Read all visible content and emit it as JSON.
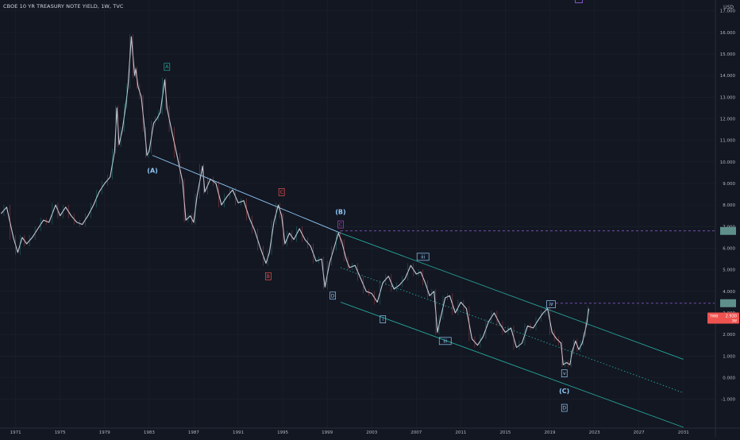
{
  "chart_data": {
    "type": "line",
    "title": "CBOE 10 YR TREASURY NOTE YIELD, 1W, TVC",
    "currency": "USD",
    "x_tick_labels": [
      "1971",
      "1975",
      "1979",
      "1983",
      "1987",
      "1991",
      "1995",
      "1999",
      "2003",
      "2007",
      "2011",
      "2015",
      "2019",
      "2023",
      "2027",
      "2031"
    ],
    "x_ticks": [
      1971,
      1975,
      1979,
      1983,
      1987,
      1991,
      1995,
      1999,
      2003,
      2007,
      2011,
      2015,
      2019,
      2023,
      2027,
      2031
    ],
    "xlim": [
      1969.6,
      2033.8
    ],
    "y_tick_labels": [
      "17.000",
      "16.000",
      "15.000",
      "14.000",
      "13.000",
      "12.000",
      "11.000",
      "10.000",
      "9.000",
      "8.000",
      "7.000",
      "6.000",
      "5.000",
      "4.000",
      "3.000",
      "2.000",
      "1.000",
      "0.000",
      "-1.000"
    ],
    "y_ticks": [
      17,
      16,
      15,
      14,
      13,
      12,
      11,
      10,
      9,
      8,
      7,
      6,
      5,
      4,
      3,
      2,
      1,
      0,
      -1
    ],
    "ylim": [
      -2.3,
      17.5
    ],
    "series": [
      {
        "x": [
          1969.7,
          1970.2,
          1970.8,
          1971.2,
          1971.6,
          1972.0,
          1972.5,
          1973.0,
          1973.5,
          1974.0,
          1974.6,
          1975.0,
          1975.5,
          1976.0,
          1976.5,
          1977.0,
          1977.5,
          1978.0,
          1978.5,
          1979.0,
          1979.5,
          1979.9,
          1980.1,
          1980.3,
          1980.6,
          1980.9,
          1981.1,
          1981.4,
          1981.7,
          1981.8,
          1982.0,
          1982.3,
          1982.6,
          1982.8,
          1983.0,
          1983.4,
          1983.7,
          1984.0,
          1984.4,
          1984.6,
          1985.0,
          1985.5,
          1986.0,
          1986.3,
          1986.7,
          1987.0,
          1987.3,
          1987.8,
          1988.0,
          1988.5,
          1989.0,
          1989.5,
          1990.0,
          1990.5,
          1991.0,
          1991.5,
          1992.0,
          1992.5,
          1993.0,
          1993.5,
          1993.8,
          1994.2,
          1994.6,
          1994.9,
          1995.2,
          1995.6,
          1996.0,
          1996.5,
          1997.0,
          1997.5,
          1998.0,
          1998.5,
          1998.8,
          1999.2,
          1999.6,
          2000.0,
          2000.3,
          2000.7,
          2001.0,
          2001.5,
          2002.0,
          2002.5,
          2003.0,
          2003.5,
          2004.0,
          2004.5,
          2005.0,
          2005.5,
          2006.0,
          2006.5,
          2007.0,
          2007.4,
          2007.8,
          2008.2,
          2008.6,
          2008.9,
          2009.2,
          2009.6,
          2010.0,
          2010.5,
          2011.0,
          2011.5,
          2012.0,
          2012.5,
          2013.0,
          2013.5,
          2014.0,
          2014.5,
          2015.0,
          2015.5,
          2016.0,
          2016.5,
          2017.0,
          2017.5,
          2018.0,
          2018.4,
          2018.8,
          2019.2,
          2019.6,
          2020.0,
          2020.2,
          2020.5,
          2020.8,
          2021.0,
          2021.3,
          2021.6,
          2021.9,
          2022.1,
          2022.3,
          2022.5
        ],
        "values": [
          7.6,
          7.9,
          6.5,
          5.8,
          6.5,
          6.2,
          6.5,
          6.9,
          7.3,
          7.2,
          8.0,
          7.5,
          7.9,
          7.5,
          7.2,
          7.1,
          7.5,
          8.0,
          8.6,
          9.0,
          9.3,
          10.5,
          12.5,
          10.8,
          11.5,
          12.6,
          13.5,
          15.8,
          14.0,
          14.3,
          13.5,
          13.0,
          11.5,
          10.3,
          10.5,
          11.8,
          12.0,
          12.3,
          13.8,
          12.5,
          11.5,
          10.3,
          9.1,
          7.3,
          7.5,
          7.2,
          8.4,
          9.8,
          8.6,
          9.2,
          9.0,
          8.0,
          8.4,
          8.7,
          8.1,
          8.2,
          7.4,
          6.8,
          6.0,
          5.3,
          5.8,
          7.2,
          8.0,
          7.5,
          6.2,
          6.7,
          6.4,
          6.9,
          6.4,
          6.1,
          5.4,
          5.5,
          4.2,
          5.3,
          6.0,
          6.7,
          6.3,
          5.5,
          5.1,
          5.2,
          4.6,
          4.0,
          3.9,
          3.5,
          4.4,
          4.7,
          4.1,
          4.3,
          4.6,
          5.2,
          4.8,
          4.9,
          4.4,
          3.8,
          4.0,
          2.1,
          2.8,
          3.7,
          3.8,
          3.0,
          3.5,
          3.2,
          1.8,
          1.5,
          1.9,
          2.6,
          3.0,
          2.5,
          2.1,
          2.3,
          1.4,
          1.6,
          2.4,
          2.3,
          2.7,
          3.0,
          3.2,
          2.1,
          1.8,
          1.6,
          0.6,
          0.7,
          0.6,
          1.2,
          1.7,
          1.3,
          1.6,
          2.0,
          2.5,
          3.2
        ]
      }
    ],
    "current_price_label": "2.930",
    "price_flag_labels": [
      "TWB",
      "3W"
    ],
    "annotations": [
      {
        "text": "A",
        "x": 1984.6,
        "y": 14.4,
        "color": "#26a69a",
        "boxed": true
      },
      {
        "text": "(A)",
        "x": 1983.3,
        "y": 9.6,
        "color": "#90caf9",
        "boxed": false
      },
      {
        "text": "C",
        "x": 1994.9,
        "y": 8.6,
        "color": "#ef5350",
        "boxed": true
      },
      {
        "text": "B",
        "x": 1993.7,
        "y": 4.7,
        "color": "#ef5350",
        "boxed": true
      },
      {
        "text": "(B)",
        "x": 2000.2,
        "y": 7.7,
        "color": "#90caf9",
        "boxed": false
      },
      {
        "text": "C",
        "x": 2000.2,
        "y": 7.1,
        "color": "#ab47bc",
        "boxed": true
      },
      {
        "text": "D",
        "x": 1999.5,
        "y": 3.8,
        "color": "#90caf9",
        "boxed": true
      },
      {
        "text": "iii",
        "x": 2007.6,
        "y": 5.6,
        "color": "#90caf9",
        "boxed": true
      },
      {
        "text": "i",
        "x": 2004.0,
        "y": 2.7,
        "color": "#90caf9",
        "boxed": true
      },
      {
        "text": "iii",
        "x": 2009.6,
        "y": 1.7,
        "color": "#90caf9",
        "boxed": true
      },
      {
        "text": "iv",
        "x": 2019.1,
        "y": 3.4,
        "color": "#90caf9",
        "boxed": true
      },
      {
        "text": "v",
        "x": 2020.3,
        "y": 0.2,
        "color": "#90caf9",
        "boxed": true
      },
      {
        "text": "(C)",
        "x": 2020.3,
        "y": -0.6,
        "color": "#90caf9",
        "boxed": false
      },
      {
        "text": "D",
        "x": 2020.3,
        "y": -1.4,
        "color": "#90caf9",
        "boxed": true
      }
    ],
    "trendlines": [
      {
        "x1": 1983.3,
        "y1": 10.3,
        "x2": 2000.2,
        "y2": 6.7,
        "color": "#90caf9",
        "style": "solid"
      },
      {
        "x1": 2000.2,
        "y1": 6.7,
        "x2": 2031.0,
        "y2": 0.85,
        "color": "#26a69a",
        "style": "solid"
      },
      {
        "x1": 2000.2,
        "y1": 3.5,
        "x2": 2031.0,
        "y2": -2.3,
        "color": "#26a69a",
        "style": "solid"
      },
      {
        "x1": 2000.2,
        "y1": 5.1,
        "x2": 2031.0,
        "y2": -0.7,
        "color": "#26a69a",
        "style": "dotted"
      },
      {
        "x1": 2000.2,
        "y1": 6.8,
        "x2": 2033.8,
        "y2": 6.8,
        "color": "#7e57c2",
        "style": "dashed"
      },
      {
        "x1": 2019.1,
        "y1": 3.45,
        "x2": 2033.8,
        "y2": 3.45,
        "color": "#7e57c2",
        "style": "dashed"
      }
    ],
    "colors": {
      "background": "#131722",
      "price_line": "#c5cbd8",
      "up": "#26a69a",
      "down": "#ef5350",
      "grid": "#1e222d",
      "price_tag": "#ef5350",
      "level_tag": "#5f8f8b"
    }
  }
}
